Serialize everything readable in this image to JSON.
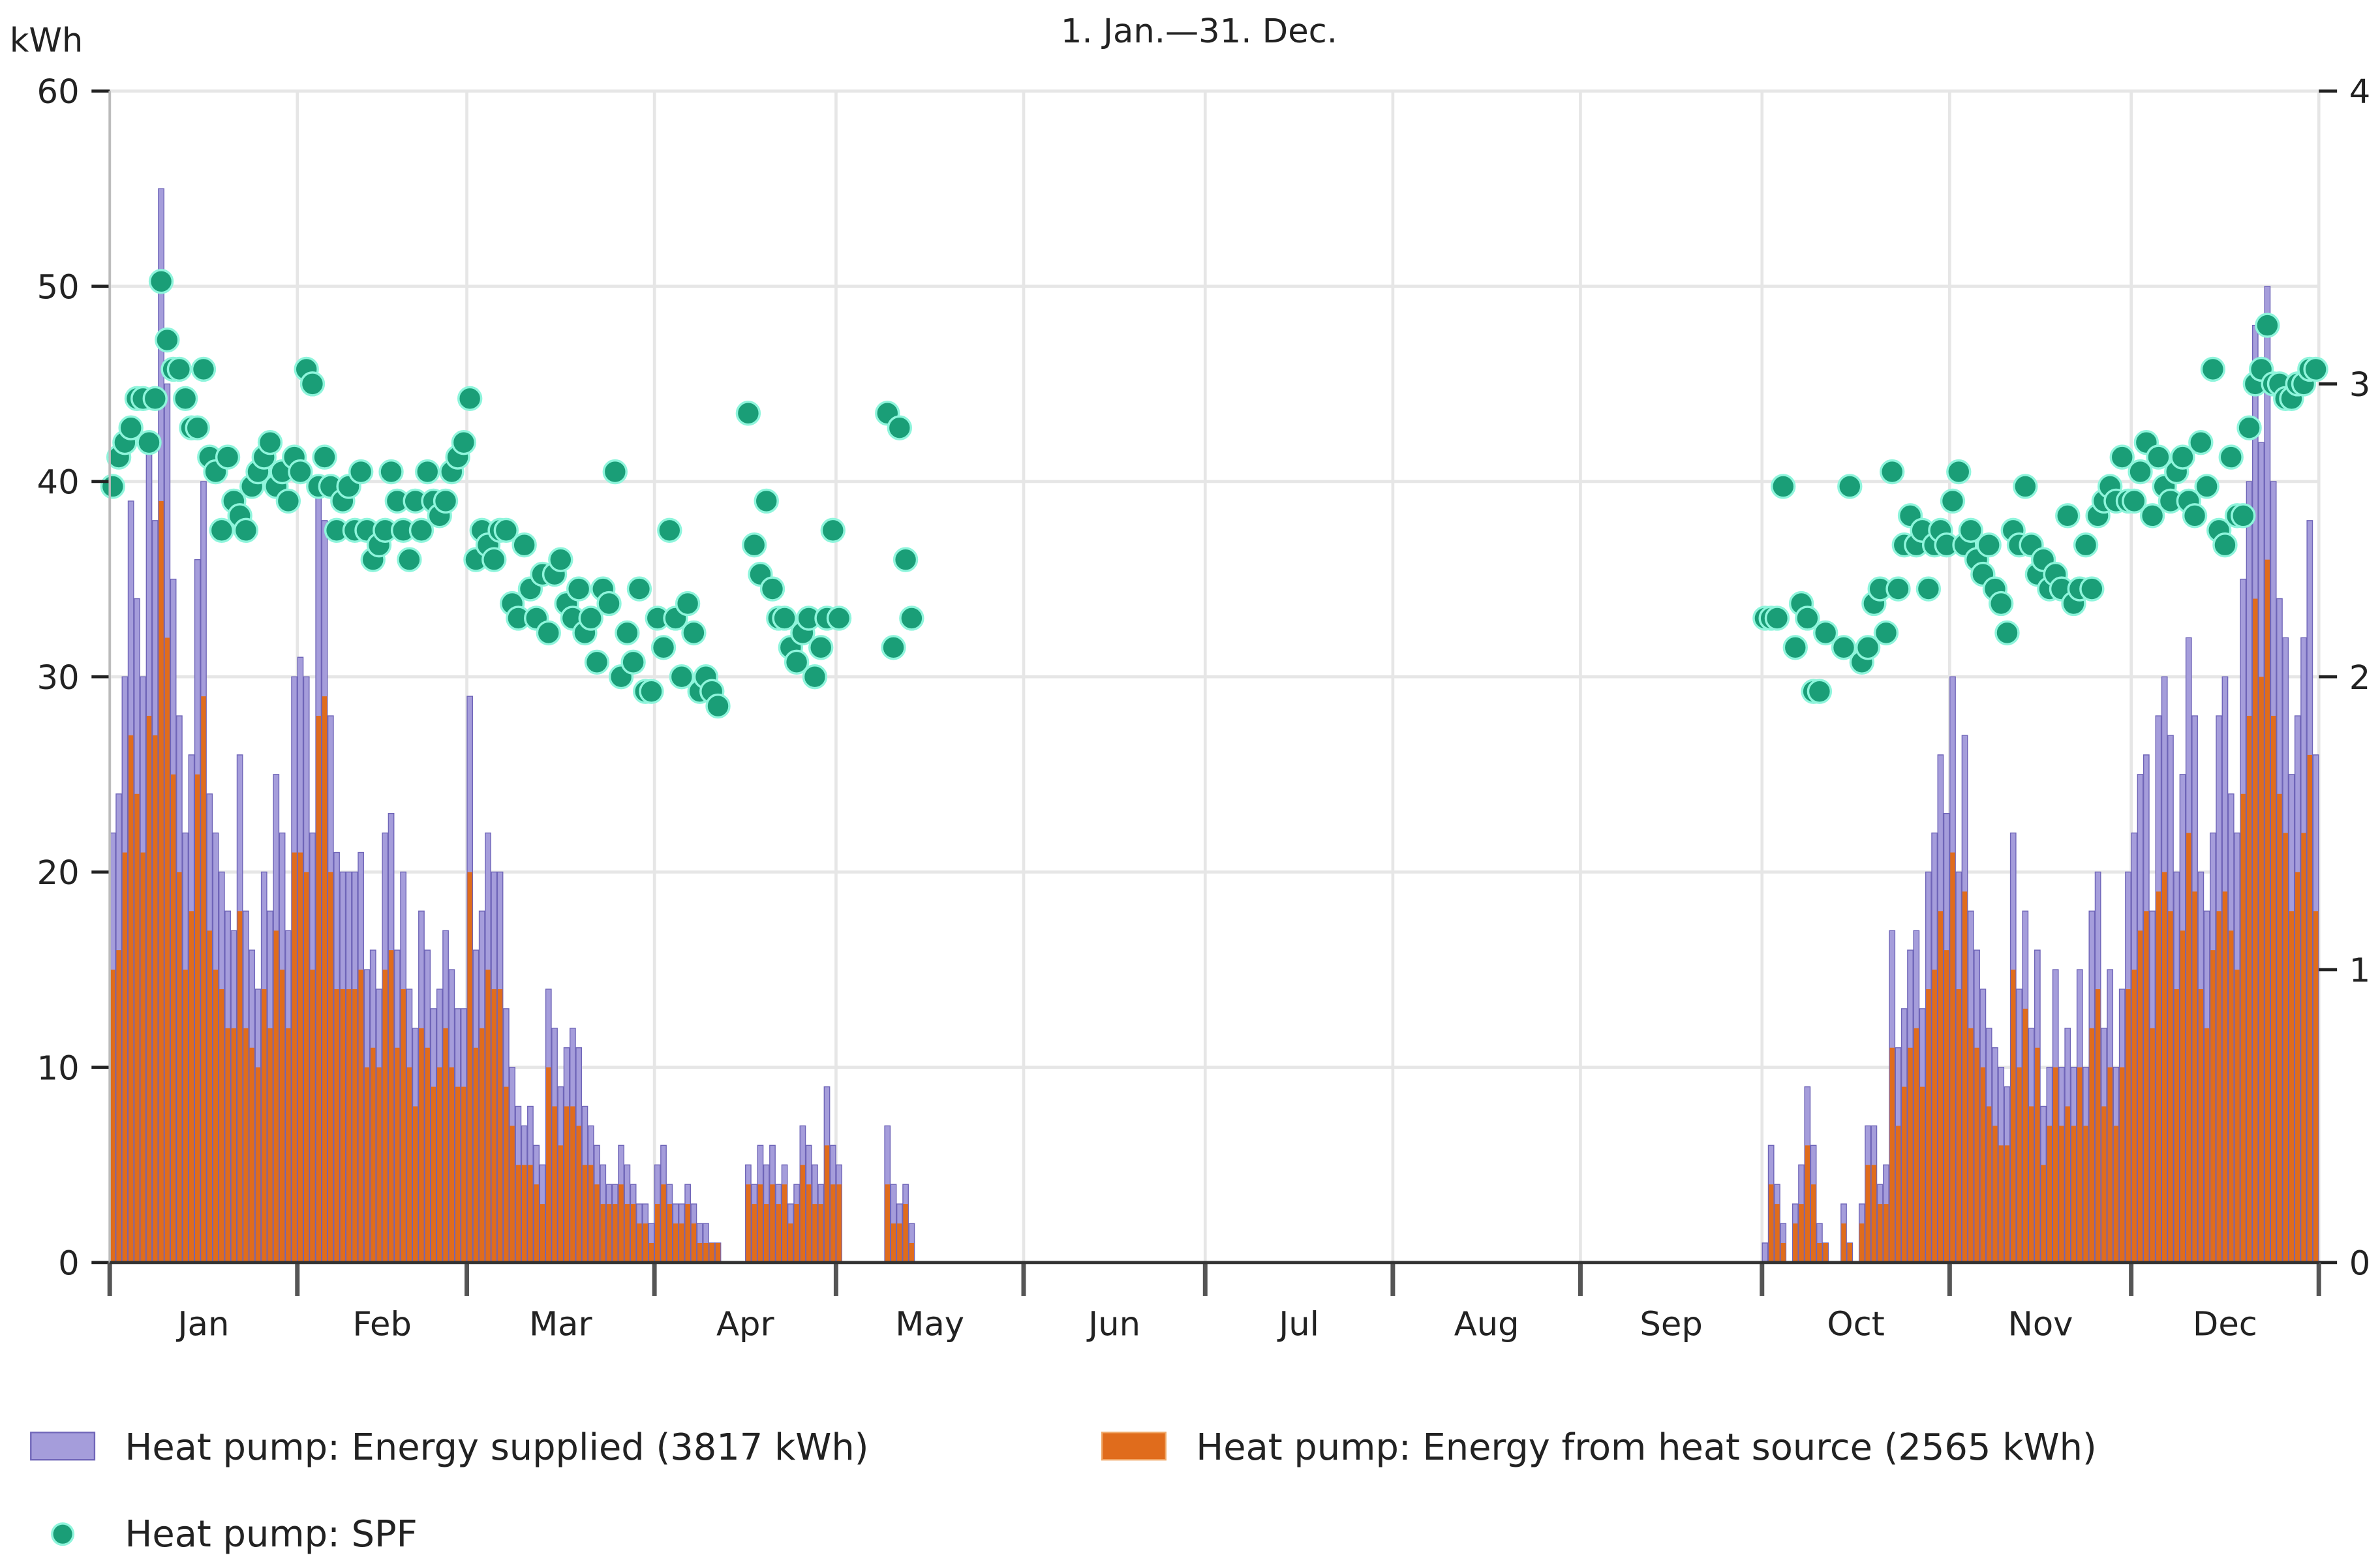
{
  "chart_data": {
    "type": "bar",
    "title": "1. Jan.—31. Dec.",
    "ylabel": "kWh",
    "ylim": [
      0,
      60
    ],
    "yticks": [
      0,
      10,
      20,
      30,
      40,
      50,
      60
    ],
    "y2lim": [
      0,
      4
    ],
    "y2ticks": [
      0,
      1,
      2,
      3,
      4
    ],
    "grid": true,
    "legend_position": "bottom",
    "colors": {
      "supplied": "#a59ddb",
      "supplied_edge": "#6f65b8",
      "source": "#e06c1c",
      "spf": "#1a9e77",
      "spf_edge": "#8ff5dc",
      "grid": "#e6e6e6",
      "axis": "#555555"
    },
    "series": [
      {
        "key": "supplied",
        "name": "Heat pump: Energy supplied (3817 kWh)",
        "type": "bar",
        "axis": "left"
      },
      {
        "key": "source",
        "name": "Heat pump: Energy from heat source (2565 kWh)",
        "type": "bar",
        "axis": "left"
      },
      {
        "key": "spf",
        "name": "Heat pump: SPF",
        "type": "scatter",
        "axis": "right"
      }
    ],
    "months": [
      {
        "label": "Jan",
        "days": 31,
        "supplied": [
          22,
          24,
          30,
          39,
          34,
          30,
          42,
          38,
          55,
          45,
          35,
          28,
          22,
          26,
          36,
          40,
          24,
          22,
          20,
          18,
          17,
          26,
          18,
          16,
          14,
          20,
          18,
          25,
          22,
          17,
          30
        ],
        "source": [
          15,
          16,
          21,
          27,
          24,
          21,
          28,
          27,
          39,
          32,
          25,
          20,
          15,
          18,
          25,
          29,
          17,
          15,
          14,
          12,
          12,
          18,
          12,
          11,
          10,
          14,
          12,
          17,
          15,
          12,
          21
        ],
        "spf": [
          2.65,
          2.75,
          2.8,
          2.85,
          2.95,
          2.95,
          2.8,
          2.95,
          3.35,
          3.15,
          3.05,
          3.05,
          2.95,
          2.85,
          2.85,
          3.05,
          2.75,
          2.7,
          2.5,
          2.75,
          2.6,
          2.55,
          2.5,
          2.65,
          2.7,
          2.75,
          2.8,
          2.65,
          2.7,
          2.6,
          2.75
        ]
      },
      {
        "label": "Feb",
        "days": 28,
        "supplied": [
          31,
          30,
          22,
          40,
          38,
          28,
          21,
          20,
          20,
          20,
          21,
          15,
          16,
          14,
          22,
          23,
          16,
          20,
          14,
          12,
          18,
          16,
          13,
          14,
          17,
          15,
          13,
          13
        ],
        "source": [
          21,
          20,
          15,
          28,
          29,
          20,
          14,
          14,
          14,
          14,
          15,
          10,
          11,
          10,
          15,
          16,
          11,
          14,
          10,
          8,
          12,
          11,
          9,
          10,
          12,
          10,
          9,
          9
        ],
        "spf": [
          2.7,
          3.05,
          3.0,
          2.65,
          2.75,
          2.65,
          2.5,
          2.6,
          2.65,
          2.5,
          2.7,
          2.5,
          2.4,
          2.45,
          2.5,
          2.7,
          2.6,
          2.5,
          2.4,
          2.6,
          2.5,
          2.7,
          2.6,
          2.55,
          2.6,
          2.7,
          2.75,
          2.8
        ]
      },
      {
        "label": "Mar",
        "days": 31,
        "supplied": [
          29,
          16,
          18,
          22,
          20,
          20,
          13,
          10,
          8,
          7,
          8,
          6,
          5,
          14,
          12,
          9,
          11,
          12,
          11,
          8,
          7,
          6,
          5,
          4,
          4,
          6,
          5,
          4,
          3,
          3,
          2
        ],
        "source": [
          20,
          11,
          12,
          15,
          14,
          14,
          9,
          7,
          5,
          5,
          5,
          4,
          3,
          10,
          8,
          6,
          8,
          8,
          7,
          5,
          5,
          4,
          3,
          3,
          3,
          4,
          3,
          3,
          2,
          2,
          1
        ],
        "spf": [
          2.95,
          2.4,
          2.5,
          2.45,
          2.4,
          2.5,
          2.5,
          2.25,
          2.2,
          2.45,
          2.3,
          2.2,
          2.35,
          2.15,
          2.35,
          2.4,
          2.25,
          2.2,
          2.3,
          2.15,
          2.2,
          2.05,
          2.3,
          2.25,
          2.7,
          2.0,
          2.15,
          2.05,
          2.3,
          1.95,
          1.95
        ]
      },
      {
        "label": "Apr",
        "days": 30,
        "supplied": [
          5,
          6,
          4,
          3,
          3,
          4,
          3,
          2,
          2,
          1,
          1,
          0,
          0,
          0,
          0,
          5,
          4,
          6,
          5,
          6,
          4,
          5,
          3,
          4,
          7,
          6,
          5,
          4,
          9,
          6
        ],
        "source": [
          3,
          4,
          3,
          2,
          2,
          3,
          2,
          1,
          1,
          1,
          1,
          0,
          0,
          0,
          0,
          4,
          3,
          4,
          3,
          4,
          3,
          4,
          2,
          3,
          5,
          4,
          3,
          3,
          6,
          4
        ],
        "spf": [
          2.2,
          2.1,
          2.5,
          2.2,
          2.0,
          2.25,
          2.15,
          1.95,
          2.0,
          1.95,
          1.9,
          null,
          null,
          null,
          null,
          2.9,
          2.45,
          2.35,
          2.6,
          2.3,
          2.2,
          2.2,
          2.1,
          2.05,
          2.15,
          2.2,
          2.0,
          2.1,
          2.2,
          2.5
        ]
      },
      {
        "label": "May",
        "days": 31,
        "supplied": [
          5,
          0,
          0,
          0,
          0,
          0,
          0,
          0,
          7,
          4,
          3,
          4,
          2
        ],
        "source": [
          4,
          0,
          0,
          0,
          0,
          0,
          0,
          0,
          4,
          2,
          2,
          3,
          1
        ],
        "spf": [
          2.2,
          null,
          null,
          null,
          null,
          null,
          null,
          null,
          2.9,
          2.1,
          2.85,
          2.4,
          2.2
        ]
      },
      {
        "label": "Jun",
        "days": 30,
        "supplied": [],
        "source": [],
        "spf": []
      },
      {
        "label": "Jul",
        "days": 31,
        "supplied": [],
        "source": [],
        "spf": []
      },
      {
        "label": "Aug",
        "days": 31,
        "supplied": [],
        "source": [],
        "spf": []
      },
      {
        "label": "Sep",
        "days": 30,
        "supplied": [],
        "source": [],
        "spf": []
      },
      {
        "label": "Oct",
        "days": 31,
        "supplied": [
          1,
          6,
          4,
          2,
          0,
          3,
          5,
          9,
          6,
          2,
          1,
          0,
          0,
          3,
          1,
          0,
          3,
          7,
          7,
          4,
          5,
          17,
          11,
          13,
          16,
          17,
          13,
          20,
          22,
          26,
          23
        ],
        "source": [
          0,
          4,
          3,
          1,
          0,
          2,
          3,
          6,
          4,
          1,
          1,
          0,
          0,
          2,
          1,
          0,
          2,
          5,
          5,
          3,
          3,
          11,
          7,
          9,
          11,
          12,
          9,
          14,
          15,
          18,
          16
        ],
        "spf": [
          2.2,
          2.2,
          2.2,
          2.65,
          null,
          2.1,
          2.25,
          2.2,
          1.95,
          1.95,
          2.15,
          null,
          null,
          2.1,
          2.65,
          null,
          2.05,
          2.1,
          2.25,
          2.3,
          2.15,
          2.7,
          2.3,
          2.45,
          2.55,
          2.45,
          2.5,
          2.3,
          2.45,
          2.5,
          2.45
        ]
      },
      {
        "label": "Nov",
        "days": 30,
        "supplied": [
          30,
          20,
          27,
          18,
          16,
          14,
          12,
          11,
          10,
          9,
          22,
          14,
          18,
          12,
          16,
          8,
          10,
          15,
          10,
          12,
          10,
          15,
          10,
          18,
          20,
          12,
          15,
          10,
          14,
          20
        ],
        "source": [
          21,
          14,
          19,
          12,
          11,
          10,
          8,
          7,
          6,
          6,
          15,
          10,
          13,
          8,
          11,
          5,
          7,
          10,
          7,
          8,
          7,
          10,
          7,
          12,
          14,
          8,
          10,
          7,
          10,
          14
        ],
        "spf": [
          2.6,
          2.7,
          2.45,
          2.5,
          2.4,
          2.35,
          2.45,
          2.3,
          2.25,
          2.15,
          2.5,
          2.45,
          2.65,
          2.45,
          2.35,
          2.4,
          2.3,
          2.35,
          2.3,
          2.55,
          2.25,
          2.3,
          2.45,
          2.3,
          2.55,
          2.6,
          2.65,
          2.6,
          2.75,
          2.6
        ]
      },
      {
        "label": "Dec",
        "days": 31,
        "supplied": [
          22,
          25,
          26,
          18,
          28,
          30,
          27,
          20,
          25,
          32,
          28,
          20,
          18,
          22,
          28,
          30,
          24,
          22,
          35,
          40,
          48,
          42,
          50,
          40,
          34,
          32,
          25,
          28,
          32,
          38,
          26
        ],
        "source": [
          15,
          17,
          18,
          12,
          19,
          20,
          18,
          14,
          17,
          22,
          19,
          14,
          12,
          16,
          18,
          19,
          17,
          15,
          24,
          28,
          34,
          30,
          36,
          28,
          24,
          22,
          18,
          20,
          22,
          26,
          18
        ],
        "spf": [
          2.6,
          2.7,
          2.8,
          2.55,
          2.75,
          2.65,
          2.6,
          2.7,
          2.75,
          2.6,
          2.55,
          2.8,
          2.65,
          3.05,
          2.5,
          2.45,
          2.75,
          2.55,
          2.55,
          2.85,
          3.0,
          3.05,
          3.2,
          3.0,
          3.0,
          2.95,
          2.95,
          3.0,
          3.0,
          3.05,
          3.05
        ]
      }
    ]
  }
}
